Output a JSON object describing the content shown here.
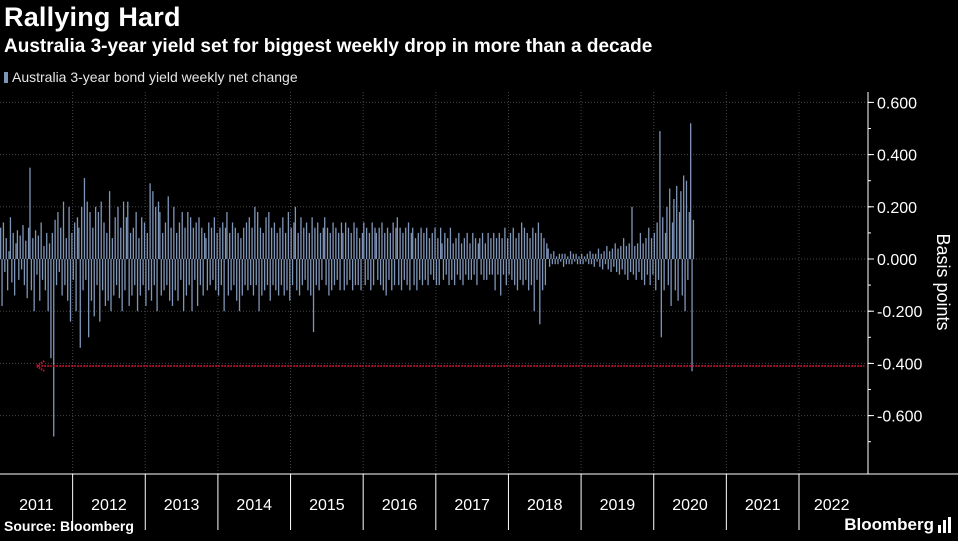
{
  "header": {
    "title": "Rallying Hard",
    "subtitle": "Australia 3-year yield set for biggest weekly drop in more than a decade"
  },
  "footer": {
    "source": "Source: Bloomberg",
    "brand": "Bloomberg"
  },
  "colors": {
    "background": "#000000",
    "bars": "#7f95b8",
    "grid": "#444444",
    "reference_line": "#c8102e",
    "text": "#ffffff"
  },
  "chart_data": {
    "type": "bar",
    "title": "Rallying Hard",
    "subtitle": "Australia 3-year yield set for biggest weekly drop in more than a decade",
    "legend": [
      "Australia 3-year bond yield weekly net change"
    ],
    "legend_position": "top-left",
    "ylabel": "Basis points",
    "ylim": [
      -0.8,
      0.65
    ],
    "yticks": [
      0.6,
      0.4,
      0.2,
      0.0,
      -0.2,
      -0.4,
      -0.6
    ],
    "ytick_labels": [
      "0.600",
      "0.400",
      "0.200",
      "0.000",
      "-0.200",
      "-0.400",
      "-0.600"
    ],
    "xlim": [
      2010.5,
      2022.45
    ],
    "year_labels": [
      "2011",
      "2012",
      "2013",
      "2014",
      "2015",
      "2016",
      "2017",
      "2018",
      "2019",
      "2020",
      "2021",
      "2022"
    ],
    "year_label_positions": [
      2011.0,
      2012.0,
      2013.0,
      2014.0,
      2015.0,
      2016.0,
      2017.0,
      2018.0,
      2019.0,
      2020.0,
      2021.0,
      2021.95
    ],
    "year_separators": [
      2011.5,
      2012.5,
      2013.5,
      2014.5,
      2015.5,
      2016.5,
      2017.5,
      2018.5,
      2019.5,
      2020.5,
      2021.5
    ],
    "grid": true,
    "series": {
      "name": "Australia 3-year bond yield weekly net change",
      "start_year": 2010.5,
      "week_step": 0.01923,
      "values": [
        0.12,
        -0.18,
        0.14,
        -0.05,
        0.08,
        -0.12,
        0.03,
        0.16,
        -0.09,
        0.1,
        -0.14,
        0.06,
        0.11,
        -0.08,
        0.09,
        -0.04,
        0.13,
        -0.1,
        0.07,
        -0.15,
        0.12,
        0.35,
        -0.12,
        0.08,
        -0.2,
        0.11,
        -0.06,
        0.09,
        -0.16,
        0.14,
        -0.08,
        0.05,
        -0.12,
        0.1,
        -0.2,
        0.06,
        -0.38,
        0.1,
        -0.68,
        0.15,
        -0.1,
        0.18,
        -0.05,
        0.12,
        -0.14,
        0.22,
        -0.1,
        0.08,
        -0.16,
        0.2,
        -0.24,
        0.1,
        -0.08,
        0.14,
        -0.2,
        0.16,
        0.12,
        -0.34,
        0.2,
        -0.12,
        0.31,
        -0.08,
        0.22,
        -0.3,
        0.18,
        -0.16,
        0.12,
        -0.22,
        0.2,
        -0.1,
        0.18,
        -0.24,
        0.22,
        -0.12,
        0.14,
        -0.18,
        0.1,
        -0.16,
        0.26,
        -0.2,
        0.08,
        -0.14,
        0.16,
        -0.1,
        0.2,
        -0.15,
        0.12,
        -0.2,
        0.22,
        -0.12,
        0.16,
        0.22,
        -0.18,
        0.1,
        -0.14,
        0.12,
        -0.1,
        0.18,
        -0.2,
        0.08,
        -0.14,
        0.16,
        -0.1,
        0.14,
        -0.18,
        0.1,
        -0.12,
        0.29,
        -0.16,
        0.26,
        -0.1,
        0.2,
        -0.2,
        0.22,
        0.18,
        -0.14,
        0.1,
        -0.12,
        0.14,
        -0.1,
        0.24,
        -0.16,
        0.12,
        -0.18,
        0.2,
        -0.12,
        0.1,
        -0.16,
        0.14,
        -0.08,
        0.18,
        -0.2,
        0.12,
        -0.14,
        0.18,
        -0.1,
        0.16,
        -0.2,
        0.12,
        -0.08,
        0.14,
        -0.18,
        0.16,
        -0.1,
        0.12,
        -0.14,
        0.1,
        0.08,
        -0.12,
        0.14,
        -0.1,
        0.12,
        -0.08,
        0.16,
        -0.12,
        0.1,
        -0.14,
        0.12,
        -0.1,
        0.14,
        -0.2,
        0.12,
        0.18,
        -0.14,
        0.1,
        -0.12,
        0.14,
        -0.1,
        0.12,
        -0.16,
        0.1,
        -0.2,
        0.08,
        -0.14,
        0.12,
        -0.1,
        0.14,
        -0.12,
        0.16,
        -0.1,
        0.12,
        -0.14,
        0.2,
        -0.1,
        0.18,
        -0.2,
        0.12,
        -0.14,
        0.1,
        -0.12,
        0.16,
        -0.1,
        0.18,
        -0.16,
        0.12,
        -0.1,
        0.14,
        -0.12,
        0.1,
        -0.14,
        0.12,
        -0.1,
        0.16,
        -0.14,
        0.1,
        -0.12,
        0.18,
        -0.16,
        0.12,
        -0.1,
        0.14,
        0.2,
        -0.12,
        0.1,
        -0.14,
        0.16,
        -0.1,
        0.12,
        -0.08,
        0.14,
        -0.12,
        0.1,
        -0.14,
        0.16,
        -0.28,
        0.12,
        -0.1,
        0.14,
        -0.12,
        0.1,
        -0.08,
        0.12,
        0.16,
        -0.1,
        0.12,
        -0.14,
        0.1,
        -0.12,
        0.14,
        -0.1,
        0.12,
        -0.08,
        0.1,
        -0.12,
        0.14,
        0.1,
        -0.12,
        0.14,
        -0.1,
        0.12,
        -0.08,
        0.1,
        -0.12,
        0.14,
        -0.1,
        0.12,
        -0.1,
        0.08,
        -0.12,
        0.1,
        0.14,
        -0.1,
        0.12,
        -0.08,
        0.1,
        -0.12,
        0.14,
        -0.1,
        0.12,
        0.1,
        -0.08,
        0.12,
        -0.1,
        0.14,
        -0.12,
        0.1,
        -0.14,
        0.12,
        -0.08,
        0.1,
        -0.12,
        0.14,
        -0.1,
        0.12,
        0.16,
        -0.1,
        0.12,
        -0.12,
        0.1,
        -0.08,
        0.12,
        -0.1,
        0.14,
        -0.12,
        0.1,
        0.12,
        -0.1,
        0.08,
        -0.12,
        0.1,
        -0.08,
        0.12,
        -0.1,
        0.1,
        -0.08,
        0.12,
        -0.1,
        0.08,
        -0.06,
        0.1,
        -0.08,
        0.12,
        -0.1,
        0.08,
        -0.1,
        0.12,
        0.06,
        -0.08,
        0.1,
        -0.06,
        0.08,
        -0.1,
        0.12,
        -0.08,
        0.06,
        -0.1,
        0.08,
        -0.06,
        0.1,
        -0.08,
        0.06,
        -0.1,
        0.08,
        -0.06,
        0.1,
        -0.08,
        0.06,
        -0.08,
        0.1,
        -0.06,
        0.08,
        -0.1,
        0.06,
        0.08,
        -0.06,
        0.1,
        -0.08,
        0.06,
        -0.08,
        0.1,
        -0.06,
        0.08,
        -0.06,
        0.1,
        -0.12,
        0.08,
        -0.06,
        0.1,
        -0.14,
        0.08,
        -0.06,
        0.12,
        -0.1,
        0.08,
        -0.06,
        0.1,
        -0.08,
        0.12,
        -0.1,
        0.08,
        -0.12,
        0.1,
        -0.08,
        0.14,
        -0.1,
        0.12,
        -0.08,
        0.1,
        -0.12,
        0.08,
        -0.1,
        0.12,
        -0.2,
        0.1,
        -0.08,
        0.14,
        -0.25,
        0.1,
        -0.12,
        0.08,
        -0.1,
        0.06,
        0.04,
        -0.03,
        0.02,
        -0.02,
        0.03,
        -0.02,
        0.01,
        -0.02,
        0.02,
        -0.01,
        0.02,
        -0.03,
        0.02,
        -0.02,
        0.01,
        -0.02,
        0.03,
        -0.02,
        0.02,
        -0.01,
        0.02,
        -0.02,
        0.01,
        -0.02,
        0.02,
        -0.02,
        0.01,
        -0.01,
        0.02,
        -0.02,
        0.03,
        -0.02,
        0.02,
        -0.03,
        0.02,
        -0.01,
        0.04,
        -0.03,
        0.02,
        -0.04,
        0.03,
        -0.02,
        0.05,
        -0.04,
        0.03,
        -0.05,
        0.04,
        -0.03,
        0.06,
        -0.05,
        0.04,
        -0.06,
        0.05,
        -0.04,
        0.08,
        -0.06,
        0.05,
        -0.08,
        0.06,
        -0.05,
        0.2,
        -0.06,
        0.05,
        -0.08,
        0.06,
        -0.05,
        0.1,
        -0.08,
        0.06,
        -0.1,
        0.08,
        -0.06,
        0.12,
        -0.1,
        0.08,
        -0.06,
        0.1,
        -0.12,
        0.14,
        -0.08,
        0.49,
        -0.3,
        0.16,
        -0.12,
        0.1,
        0.2,
        -0.1,
        0.27,
        -0.18,
        0.14,
        0.23,
        -0.12,
        0.28,
        -0.16,
        0.18,
        0.26,
        -0.14,
        0.32,
        -0.2,
        0.3,
        -0.08,
        0.18,
        0.52,
        -0.43,
        0.15
      ]
    },
    "reference_line": {
      "y": -0.41,
      "x_start": 2011.0,
      "x_end": 2022.4,
      "style": "dotted-arrow-left"
    }
  }
}
